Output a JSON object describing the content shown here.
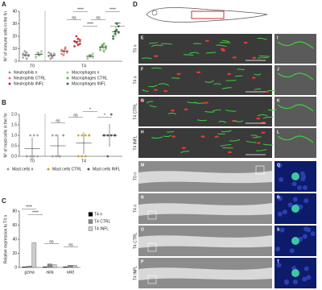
{
  "chart_data": [
    {
      "type": "dot",
      "panel": "A",
      "y_label": "N° of immune cells in the fin",
      "categories": [
        "T0",
        "T4"
      ],
      "ylim": [
        0,
        40
      ],
      "yticks": [
        0,
        10,
        20,
        30,
        40
      ],
      "series": [
        {
          "name": "Neutrophils n",
          "color": "#9e9e9e",
          "values": [
            [
              3,
              5,
              7,
              4,
              6,
              8,
              2,
              5
            ],
            [
              4,
              6,
              3,
              5,
              7,
              2,
              4,
              6
            ]
          ]
        },
        {
          "name": "Neutrophils CTRL",
          "color": "#e57373",
          "values": [
            null,
            [
              6,
              8,
              10,
              7,
              9,
              5,
              11,
              8
            ]
          ]
        },
        {
          "name": "Neutrophils INFL",
          "color": "#c62828",
          "values": [
            null,
            [
              12,
              15,
              18,
              14,
              16,
              20,
              13,
              17
            ]
          ]
        },
        {
          "name": "Macrophages n",
          "color": "#a5c89a",
          "values": [
            [
              4,
              6,
              5,
              8,
              3,
              7,
              5,
              6
            ],
            [
              3,
              5,
              4,
              6,
              2,
              4,
              5,
              3
            ]
          ]
        },
        {
          "name": "Macrophages CTRL",
          "color": "#5fae4f",
          "values": [
            null,
            [
              9,
              12,
              14,
              10,
              11,
              13,
              8,
              12
            ]
          ]
        },
        {
          "name": "Macrophages INFL",
          "color": "#2e7d32",
          "values": [
            null,
            [
              18,
              22,
              25,
              28,
              20,
              24,
              30,
              23
            ]
          ]
        }
      ],
      "annotations": [
        "****",
        "****",
        "ns",
        "ns",
        "****",
        "****"
      ]
    },
    {
      "type": "dot",
      "panel": "B",
      "y_label": "N° of mast cells in the fin",
      "categories": [
        "T0",
        "T4"
      ],
      "ylim": [
        0,
        2
      ],
      "yticks": [
        {
          "value": 0,
          "label": "0.0"
        },
        {
          "value": 0.5,
          "label": "0.5"
        },
        {
          "value": 1,
          "label": "1.0"
        },
        {
          "value": 1.5,
          "label": "1.5"
        },
        {
          "value": 2,
          "label": "2.0"
        }
      ],
      "series": [
        {
          "name": "Mast cells n",
          "color": "#9e9e9e",
          "values": [
            [
              0,
              1,
              0,
              1,
              0,
              0,
              1,
              0
            ],
            [
              0,
              1,
              0,
              1,
              1,
              0,
              0,
              1
            ]
          ]
        },
        {
          "name": "Mast cells CTRL",
          "color": "#c9a227",
          "values": [
            null,
            [
              1,
              0,
              1,
              1,
              0,
              1,
              0,
              1
            ]
          ]
        },
        {
          "name": "Mast cells INFL",
          "color": "#6d4c41",
          "values": [
            null,
            [
              1,
              1,
              1,
              1,
              1,
              0,
              2,
              1
            ]
          ]
        }
      ],
      "annotations": [
        "ns",
        "ns",
        "*",
        "*"
      ]
    },
    {
      "type": "bar",
      "panel": "C",
      "y_label": "Relative expression to T4 n",
      "categories": [
        "gzma",
        "nkla",
        "nkld"
      ],
      "ylim": [
        0,
        80
      ],
      "yticks": [
        0,
        20,
        40,
        60,
        80
      ],
      "series": [
        {
          "name": "T4 n",
          "color": "#000000",
          "values": [
            1,
            1,
            1
          ]
        },
        {
          "name": "T4 CTRL",
          "color": "#888888",
          "values": [
            2,
            5,
            3
          ]
        },
        {
          "name": "T4 INFL",
          "color": "#cccccc",
          "values": [
            35,
            4,
            3
          ]
        }
      ],
      "annotations": [
        "****",
        "****",
        "ns",
        "ns"
      ]
    }
  ],
  "images": {
    "panel": "D",
    "fluorescence": [
      {
        "label": "E",
        "condition": "T0 n",
        "inset": "I"
      },
      {
        "label": "F",
        "condition": "T4 n",
        "inset": "J"
      },
      {
        "label": "G",
        "condition": "T4 CTRL",
        "inset": "K"
      },
      {
        "label": "H",
        "condition": "T4 INFL",
        "inset": "L"
      }
    ],
    "brightfield": [
      {
        "label": "M",
        "condition": "T0 n",
        "inset": "Q"
      },
      {
        "label": "N",
        "condition": "T4 n",
        "inset": "R"
      },
      {
        "label": "O",
        "condition": "T4 CTRL",
        "inset": "S"
      },
      {
        "label": "P",
        "condition": "T4 INFL",
        "inset": "T"
      }
    ]
  }
}
